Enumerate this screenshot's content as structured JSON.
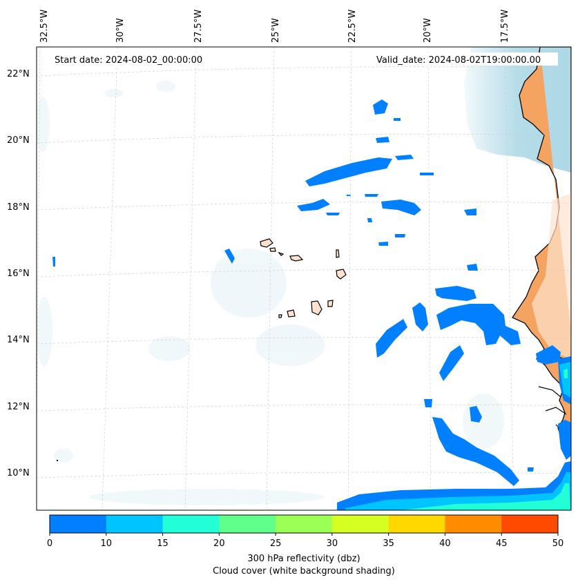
{
  "annotations": {
    "start_date": "Start date: 2024-08-02_00:00:00",
    "valid_date": "Valid_date: 2024-08-02T19:00:00.00"
  },
  "lon_ticks": [
    "32.5°W",
    "30°W",
    "27.5°W",
    "25°W",
    "22.5°W",
    "20°W",
    "17.5°W"
  ],
  "lat_ticks": [
    "22°N",
    "20°N",
    "18°N",
    "16°N",
    "14°N",
    "12°N",
    "10°N"
  ],
  "colorbar": {
    "ticks": [
      "0",
      "10",
      "15",
      "20",
      "25",
      "30",
      "35",
      "40",
      "45",
      "50"
    ],
    "colors": [
      "#0080ff",
      "#00c4ff",
      "#22ffd6",
      "#60ff8c",
      "#9cff55",
      "#d6ff22",
      "#ffd800",
      "#ff8c00",
      "#ff4a00"
    ],
    "label_line1": "300 hPa reflectivity (dbz)",
    "label_line2": "Cloud cover (white background shading)"
  },
  "colors": {
    "land": "#f4a460",
    "cloud_blue": "#add8e6",
    "echo_blue": "#0080ff",
    "echo_cyan": "#00c4ff",
    "echo_teal": "#22ffd6"
  }
}
